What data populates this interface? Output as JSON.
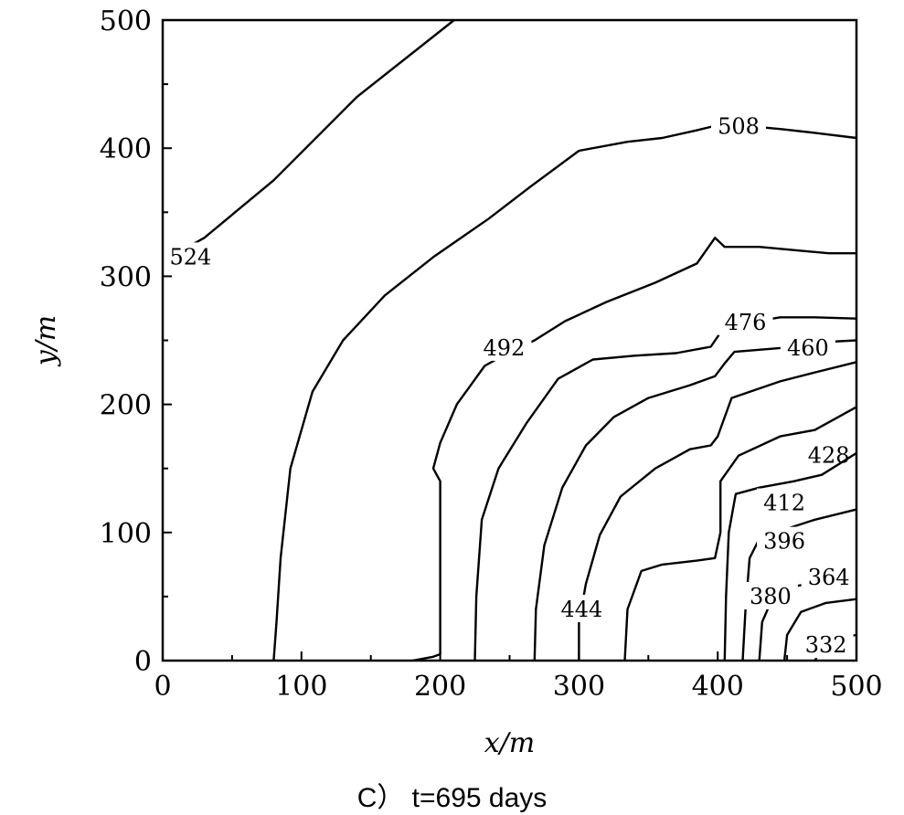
{
  "chart_data": {
    "type": "contour",
    "caption": "C） t=695 days",
    "xlabel": "x/m",
    "ylabel": "y/m",
    "xlim": [
      0,
      500
    ],
    "ylim": [
      0,
      500
    ],
    "x_ticks": [
      "0",
      "100",
      "200",
      "300",
      "400",
      "500"
    ],
    "y_ticks": [
      "0",
      "100",
      "200",
      "300",
      "400",
      "500"
    ],
    "contours": [
      {
        "level": "524",
        "points": [
          [
            5,
            315
          ],
          [
            30,
            330
          ],
          [
            80,
            375
          ],
          [
            140,
            440
          ],
          [
            210,
            500
          ]
        ],
        "label_at": [
          20,
          315
        ]
      },
      {
        "level": "508",
        "points": [
          [
            80,
            0
          ],
          [
            82,
            30
          ],
          [
            85,
            80
          ],
          [
            92,
            150
          ],
          [
            108,
            210
          ],
          [
            130,
            250
          ],
          [
            160,
            285
          ],
          [
            195,
            315
          ],
          [
            235,
            345
          ],
          [
            265,
            370
          ],
          [
            300,
            398
          ],
          [
            335,
            405
          ],
          [
            360,
            408
          ],
          [
            385,
            414
          ],
          [
            400,
            418
          ],
          [
            425,
            417
          ],
          [
            445,
            415
          ],
          [
            470,
            412
          ],
          [
            500,
            408
          ]
        ],
        "label_at": [
          415,
          417
        ]
      },
      {
        "level": "492",
        "points": [
          [
            180,
            0
          ],
          [
            195,
            3
          ],
          [
            200,
            5
          ],
          [
            200,
            60
          ],
          [
            200,
            140
          ],
          [
            195,
            150
          ],
          [
            200,
            170
          ],
          [
            212,
            200
          ],
          [
            232,
            230
          ],
          [
            245,
            238
          ],
          [
            268,
            250
          ],
          [
            290,
            265
          ],
          [
            320,
            280
          ],
          [
            355,
            295
          ],
          [
            385,
            310
          ],
          [
            398,
            330
          ],
          [
            405,
            323
          ],
          [
            430,
            323
          ],
          [
            460,
            320
          ],
          [
            480,
            318
          ],
          [
            500,
            318
          ]
        ],
        "label_at": [
          246,
          244
        ]
      },
      {
        "level": "476",
        "points": [
          [
            225,
            0
          ],
          [
            226,
            50
          ],
          [
            230,
            110
          ],
          [
            242,
            150
          ],
          [
            262,
            185
          ],
          [
            285,
            220
          ],
          [
            310,
            235
          ],
          [
            340,
            238
          ],
          [
            370,
            240
          ],
          [
            395,
            245
          ],
          [
            402,
            256
          ],
          [
            412,
            262
          ],
          [
            445,
            268
          ],
          [
            470,
            268
          ],
          [
            500,
            267
          ]
        ],
        "label_at": [
          420,
          264
        ]
      },
      {
        "level": "460",
        "points": [
          [
            268,
            0
          ],
          [
            269,
            40
          ],
          [
            275,
            90
          ],
          [
            288,
            135
          ],
          [
            305,
            168
          ],
          [
            325,
            190
          ],
          [
            350,
            205
          ],
          [
            380,
            215
          ],
          [
            398,
            222
          ],
          [
            405,
            232
          ],
          [
            412,
            241
          ],
          [
            445,
            244
          ],
          [
            465,
            248
          ],
          [
            500,
            250
          ]
        ],
        "label_at": [
          465,
          244
        ]
      },
      {
        "level": "444",
        "points": [
          [
            300,
            0
          ],
          [
            300,
            30
          ],
          [
            305,
            60
          ],
          [
            315,
            98
          ],
          [
            330,
            128
          ],
          [
            355,
            150
          ],
          [
            380,
            165
          ],
          [
            395,
            168
          ],
          [
            400,
            175
          ],
          [
            405,
            190
          ],
          [
            410,
            205
          ],
          [
            445,
            218
          ],
          [
            470,
            225
          ],
          [
            500,
            233
          ]
        ],
        "label_at": [
          302,
          40
        ]
      },
      {
        "level": "428",
        "points": [
          [
            333,
            0
          ],
          [
            335,
            40
          ],
          [
            345,
            70
          ],
          [
            360,
            75
          ],
          [
            385,
            78
          ],
          [
            398,
            80
          ],
          [
            402,
            100
          ],
          [
            402,
            140
          ],
          [
            415,
            160
          ],
          [
            445,
            175
          ],
          [
            470,
            180
          ],
          [
            500,
            198
          ]
        ],
        "label_at": [
          480,
          160
        ]
      },
      {
        "level": "412",
        "points": [
          [
            405,
            0
          ],
          [
            406,
            50
          ],
          [
            408,
            100
          ],
          [
            413,
            130
          ],
          [
            430,
            135
          ],
          [
            455,
            140
          ],
          [
            475,
            145
          ],
          [
            500,
            162
          ]
        ],
        "label_at": [
          448,
          123
        ]
      },
      {
        "level": "396",
        "points": [
          [
            418,
            0
          ],
          [
            420,
            40
          ],
          [
            423,
            80
          ],
          [
            430,
            95
          ],
          [
            450,
            103
          ],
          [
            470,
            110
          ],
          [
            500,
            118
          ]
        ],
        "label_at": [
          448,
          93
        ]
      },
      {
        "level": "380",
        "points": [
          [
            430,
            0
          ],
          [
            432,
            30
          ],
          [
            440,
            50
          ],
          [
            455,
            58
          ],
          [
            478,
            62
          ],
          [
            500,
            70
          ]
        ],
        "label_at": [
          438,
          50
        ]
      },
      {
        "level": "364",
        "points": [
          [
            448,
            0
          ],
          [
            450,
            20
          ],
          [
            460,
            38
          ],
          [
            478,
            45
          ],
          [
            500,
            48
          ]
        ],
        "label_at": [
          480,
          65
        ]
      },
      {
        "level": "332",
        "points": [
          [
            470,
            0
          ],
          [
            475,
            10
          ],
          [
            488,
            18
          ],
          [
            500,
            20
          ]
        ],
        "label_at": [
          478,
          12
        ]
      }
    ]
  }
}
